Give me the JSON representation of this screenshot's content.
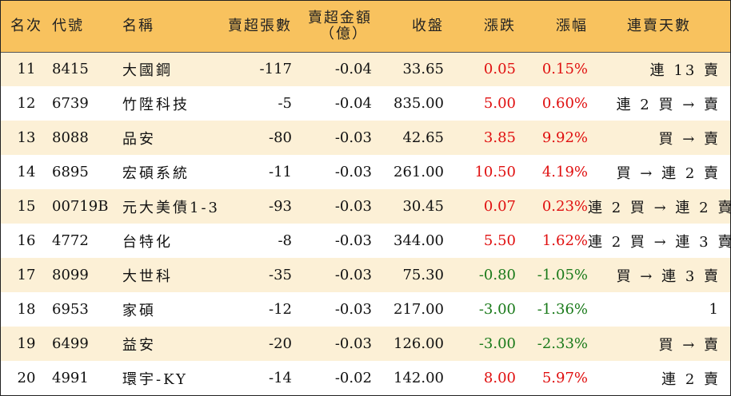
{
  "headers": {
    "rank": "名次",
    "code": "代號",
    "name": "名稱",
    "lots": "賣超張數",
    "amount_line1": "賣超金額",
    "amount_line2": "（億）",
    "close": "收盤",
    "change": "漲跌",
    "pct": "漲幅",
    "streak": "連賣天數"
  },
  "rows": [
    {
      "rank": "11",
      "code": "8415",
      "name": "大國鋼",
      "lots": "-117",
      "amount": "-0.04",
      "close": "33.65",
      "change": "0.05",
      "pct": "0.15%",
      "dir": "up",
      "streak": "連 13 賣"
    },
    {
      "rank": "12",
      "code": "6739",
      "name": "竹陞科技",
      "lots": "-5",
      "amount": "-0.04",
      "close": "835.00",
      "change": "5.00",
      "pct": "0.60%",
      "dir": "up",
      "streak": "連 2 買 → 賣"
    },
    {
      "rank": "13",
      "code": "8088",
      "name": "品安",
      "lots": "-80",
      "amount": "-0.03",
      "close": "42.65",
      "change": "3.85",
      "pct": "9.92%",
      "dir": "up",
      "streak": "買 → 賣"
    },
    {
      "rank": "14",
      "code": "6895",
      "name": "宏碩系統",
      "lots": "-11",
      "amount": "-0.03",
      "close": "261.00",
      "change": "10.50",
      "pct": "4.19%",
      "dir": "up",
      "streak": "買 → 連 2 賣"
    },
    {
      "rank": "15",
      "code": "00719B",
      "name": "元大美債1-3",
      "lots": "-93",
      "amount": "-0.03",
      "close": "30.45",
      "change": "0.07",
      "pct": "0.23%",
      "dir": "up",
      "streak": "連 2 買 → 連 2 賣"
    },
    {
      "rank": "16",
      "code": "4772",
      "name": "台特化",
      "lots": "-8",
      "amount": "-0.03",
      "close": "344.00",
      "change": "5.50",
      "pct": "1.62%",
      "dir": "up",
      "streak": "連 2 買 → 連 3 賣"
    },
    {
      "rank": "17",
      "code": "8099",
      "name": "大世科",
      "lots": "-35",
      "amount": "-0.03",
      "close": "75.30",
      "change": "-0.80",
      "pct": "-1.05%",
      "dir": "down",
      "streak": "買 → 連 3 賣"
    },
    {
      "rank": "18",
      "code": "6953",
      "name": "家碩",
      "lots": "-12",
      "amount": "-0.03",
      "close": "217.00",
      "change": "-3.00",
      "pct": "-1.36%",
      "dir": "down",
      "streak": "1"
    },
    {
      "rank": "19",
      "code": "6499",
      "name": "益安",
      "lots": "-20",
      "amount": "-0.03",
      "close": "126.00",
      "change": "-3.00",
      "pct": "-2.33%",
      "dir": "down",
      "streak": "買 → 賣"
    },
    {
      "rank": "20",
      "code": "4991",
      "name": "環宇-KY",
      "lots": "-14",
      "amount": "-0.02",
      "close": "142.00",
      "change": "8.00",
      "pct": "5.97%",
      "dir": "up",
      "streak": "連 2 賣"
    }
  ],
  "colors": {
    "header_bg": "#f8c25e",
    "row_odd": "#fcf0d6",
    "row_even": "#ffffff",
    "up": "#e01010",
    "down": "#1a7a1a"
  }
}
